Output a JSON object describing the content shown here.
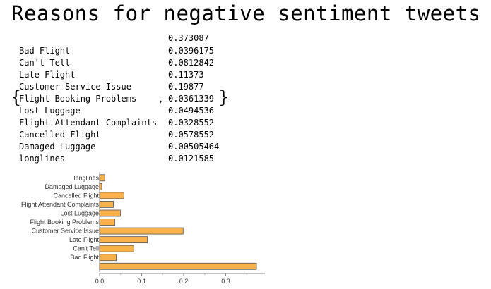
{
  "title": "Reasons for negative sentiment tweets",
  "output": {
    "first_value": "0.373087",
    "rows": [
      {
        "label": "Bad Flight",
        "value": "0.0396175"
      },
      {
        "label": "Can't Tell",
        "value": "0.0812842"
      },
      {
        "label": "Late Flight",
        "value": "0.11373"
      },
      {
        "label": "Customer Service Issue",
        "value": "0.19877"
      },
      {
        "label": "Flight Booking Problems",
        "value": "0.0361339"
      },
      {
        "label": "Lost Luggage",
        "value": "0.0494536"
      },
      {
        "label": "Flight Attendant Complaints",
        "value": "0.0328552"
      },
      {
        "label": "Cancelled Flight",
        "value": "0.0578552"
      },
      {
        "label": "Damaged Luggage",
        "value": "0.00505464"
      },
      {
        "label": "longlines",
        "value": "0.0121585"
      }
    ],
    "left_brace": "{",
    "right_brace": "}",
    "comma": ","
  },
  "chart_data": {
    "type": "bar",
    "orientation": "horizontal",
    "categories": [
      "",
      "Bad Flight",
      "Can't Tell",
      "Late Flight",
      "Customer Service Issue",
      "Flight Booking Problems",
      "Lost Luggage",
      "Flight Attendant Complaints",
      "Cancelled Flight",
      "Damaged Luggage",
      "longlines"
    ],
    "values": [
      0.373087,
      0.0396175,
      0.0812842,
      0.11373,
      0.19877,
      0.0361339,
      0.0494536,
      0.0328552,
      0.0578552,
      0.00505464,
      0.0121585
    ],
    "xticks": [
      "0.0",
      "0.1",
      "0.2",
      "0.3"
    ],
    "xlim": [
      0,
      0.39
    ],
    "bar_color": "#F9B24B",
    "edge_color": "#555555"
  }
}
